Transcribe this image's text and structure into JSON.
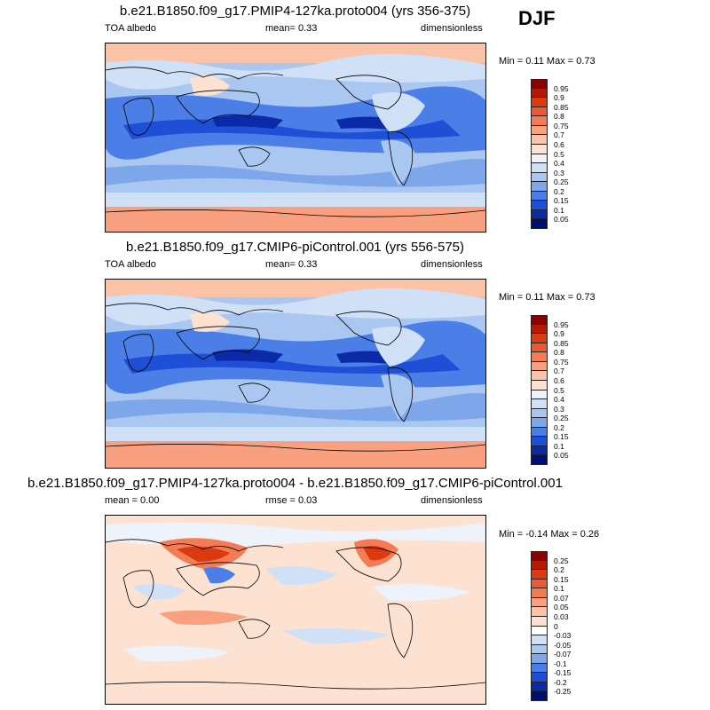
{
  "season": "DJF",
  "panels": [
    {
      "title": "b.e21.B1850.f09_g17.PMIP4-127ka.proto004 (yrs 356-375)",
      "left_label": "TOA albedo",
      "center_label": "mean=   0.33",
      "right_label": "dimensionless",
      "minmax": "Min =   0.11 Max =   0.73",
      "colorbar": {
        "labels": [
          "0.95",
          "0.9",
          "0.85",
          "0.8",
          "0.75",
          "0.7",
          "0.6",
          "0.5",
          "0.4",
          "0.3",
          "0.25",
          "0.2",
          "0.15",
          "0.1",
          "0.05"
        ],
        "colors": [
          "#8b0000",
          "#b31a00",
          "#d93a10",
          "#ed5a30",
          "#f47c55",
          "#f8a07f",
          "#fbc3a8",
          "#fde2d2",
          "#eef3fb",
          "#cfe0f7",
          "#a9c7f0",
          "#7da6eb",
          "#4b7ee6",
          "#1f4fd6",
          "#0a2aa8",
          "#001070"
        ]
      }
    },
    {
      "title": "b.e21.B1850.f09_g17.CMIP6-piControl.001 (yrs 556-575)",
      "left_label": "TOA albedo",
      "center_label": "mean=   0.33",
      "right_label": "dimensionless",
      "minmax": "Min =   0.11 Max =   0.73",
      "colorbar": {
        "labels": [
          "0.95",
          "0.9",
          "0.85",
          "0.8",
          "0.75",
          "0.7",
          "0.6",
          "0.5",
          "0.4",
          "0.3",
          "0.25",
          "0.2",
          "0.15",
          "0.1",
          "0.05"
        ],
        "colors": [
          "#8b0000",
          "#b31a00",
          "#d93a10",
          "#ed5a30",
          "#f47c55",
          "#f8a07f",
          "#fbc3a8",
          "#fde2d2",
          "#eef3fb",
          "#cfe0f7",
          "#a9c7f0",
          "#7da6eb",
          "#4b7ee6",
          "#1f4fd6",
          "#0a2aa8",
          "#001070"
        ]
      }
    },
    {
      "title": "b.e21.B1850.f09_g17.PMIP4-127ka.proto004 - b.e21.B1850.f09_g17.CMIP6-piControl.001",
      "left_label": "mean =   0.00",
      "center_label": "rmse =   0.03",
      "right_label": "dimensionless",
      "minmax": "Min =  -0.14 Max =   0.26",
      "colorbar": {
        "labels": [
          "0.25",
          "0.2",
          "0.15",
          "0.1",
          "0.07",
          "0.05",
          "0.03",
          "0",
          "-0.03",
          "-0.05",
          "-0.07",
          "-0.1",
          "-0.15",
          "-0.2",
          "-0.25"
        ],
        "colors": [
          "#8b0000",
          "#b31a00",
          "#d93a10",
          "#ed5a30",
          "#f47c55",
          "#f8a07f",
          "#fbc3a8",
          "#fde2d2",
          "#ffffff",
          "#cfe0f7",
          "#a9c7f0",
          "#7da6eb",
          "#4b7ee6",
          "#1f4fd6",
          "#0a2aa8",
          "#001070"
        ]
      }
    }
  ],
  "chart_data": [
    {
      "type": "heatmap",
      "title": "b.e21.B1850.f09_g17.PMIP4-127ka.proto004 (yrs 356-375)",
      "variable": "TOA albedo",
      "units": "dimensionless",
      "mean": 0.33,
      "min": 0.11,
      "max": 0.73,
      "contour_levels": [
        0.05,
        0.1,
        0.15,
        0.2,
        0.25,
        0.3,
        0.4,
        0.5,
        0.6,
        0.7,
        0.75,
        0.8,
        0.85,
        0.9,
        0.95
      ]
    },
    {
      "type": "heatmap",
      "title": "b.e21.B1850.f09_g17.CMIP6-piControl.001 (yrs 556-575)",
      "variable": "TOA albedo",
      "units": "dimensionless",
      "mean": 0.33,
      "min": 0.11,
      "max": 0.73,
      "contour_levels": [
        0.05,
        0.1,
        0.15,
        0.2,
        0.25,
        0.3,
        0.4,
        0.5,
        0.6,
        0.7,
        0.75,
        0.8,
        0.85,
        0.9,
        0.95
      ]
    },
    {
      "type": "heatmap",
      "title": "b.e21.B1850.f09_g17.PMIP4-127ka.proto004 - b.e21.B1850.f09_g17.CMIP6-piControl.001",
      "units": "dimensionless",
      "mean": 0.0,
      "rmse": 0.03,
      "min": -0.14,
      "max": 0.26,
      "contour_levels": [
        -0.25,
        -0.2,
        -0.15,
        -0.1,
        -0.07,
        -0.05,
        -0.03,
        0,
        0.03,
        0.05,
        0.07,
        0.1,
        0.15,
        0.2,
        0.25
      ]
    }
  ]
}
